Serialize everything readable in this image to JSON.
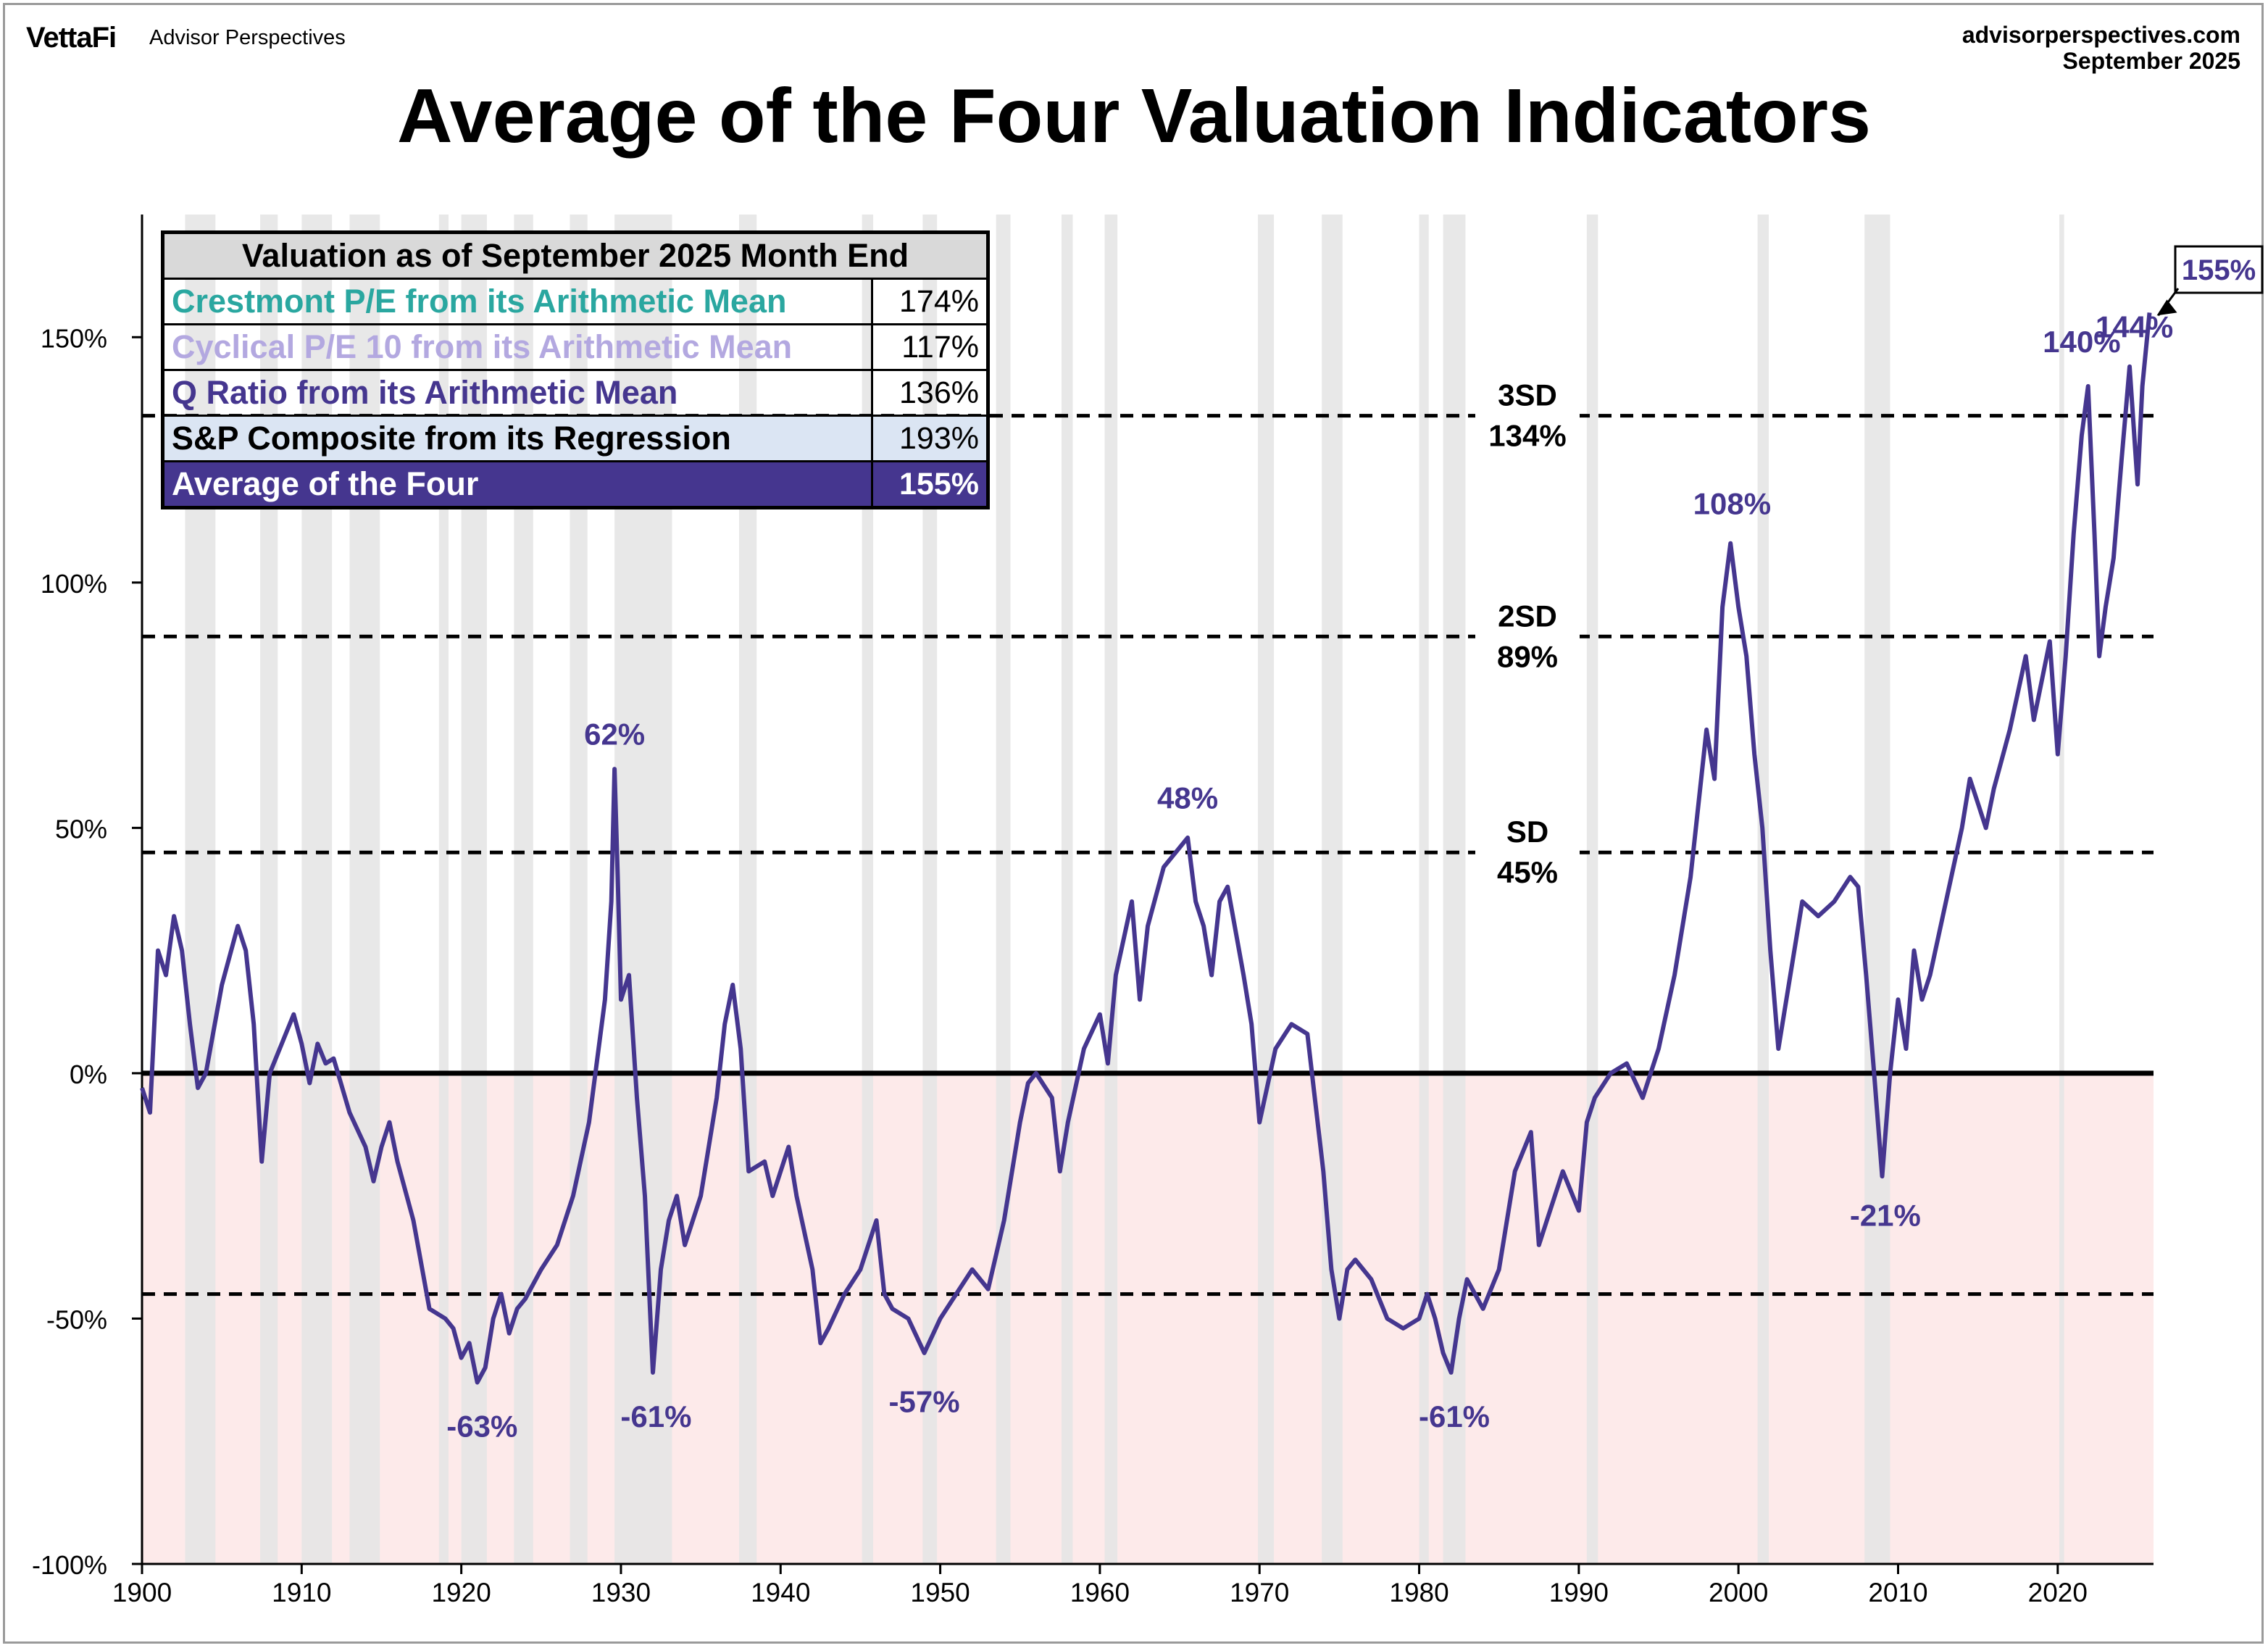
{
  "header": {
    "brand": "VettaFi",
    "brand_sub": "Advisor Perspectives",
    "site": "advisorperspectives.com",
    "date": "September 2025"
  },
  "title": "Average of the Four Valuation Indicators",
  "legend": {
    "header": "Valuation as of September 2025 Month End",
    "rows": [
      {
        "label": "Crestmont P/E from its Arithmetic Mean",
        "value": "174%",
        "color": "#2aa7a0"
      },
      {
        "label": "Cyclical P/E 10 from its Arithmetic Mean",
        "value": "117%",
        "color": "#b3a8e0"
      },
      {
        "label": "Q Ratio from its Arithmetic Mean",
        "value": "136%",
        "color": "#45368f"
      },
      {
        "label": "S&P Composite from its Regression",
        "value": "193%",
        "color": "#000000"
      },
      {
        "label": "Average of the Four",
        "value": "155%",
        "color": "#ffffff"
      }
    ]
  },
  "colors": {
    "line": "#45368f",
    "recession_band": "#e6e6e6",
    "negative_zone": "#fdeaea"
  },
  "chart_data": {
    "type": "line",
    "ylim": [
      -100,
      175
    ],
    "xlim": [
      1900,
      2026
    ],
    "yticks": [
      {
        "v": 150,
        "label": "150%"
      },
      {
        "v": 100,
        "label": "100%"
      },
      {
        "v": 50,
        "label": "50%"
      },
      {
        "v": 0,
        "label": "0%"
      },
      {
        "v": -50,
        "label": "-50%"
      },
      {
        "v": -100,
        "label": "-100%"
      }
    ],
    "xticks": [
      1900,
      1910,
      1920,
      1930,
      1940,
      1950,
      1960,
      1970,
      1980,
      1990,
      2000,
      2010,
      2020
    ],
    "ref_lines": [
      {
        "v": 134,
        "label_top": "3SD",
        "label_bottom": "134%"
      },
      {
        "v": 89,
        "label_top": "2SD",
        "label_bottom": "89%"
      },
      {
        "v": 45,
        "label_top": "SD",
        "label_bottom": "45%"
      },
      {
        "v": -45,
        "label_top": "",
        "label_bottom": ""
      }
    ],
    "recessions": [
      [
        1902.7,
        1904.6
      ],
      [
        1907.4,
        1908.5
      ],
      [
        1910.0,
        1911.9
      ],
      [
        1913.0,
        1914.9
      ],
      [
        1918.6,
        1919.2
      ],
      [
        1920.0,
        1921.6
      ],
      [
        1923.3,
        1924.5
      ],
      [
        1926.8,
        1927.9
      ],
      [
        1929.6,
        1933.2
      ],
      [
        1937.4,
        1938.5
      ],
      [
        1945.1,
        1945.8
      ],
      [
        1948.9,
        1949.8
      ],
      [
        1953.5,
        1954.4
      ],
      [
        1957.6,
        1958.3
      ],
      [
        1960.3,
        1961.1
      ],
      [
        1969.9,
        1970.9
      ],
      [
        1973.9,
        1975.2
      ],
      [
        1980.0,
        1980.6
      ],
      [
        1981.5,
        1982.9
      ],
      [
        1990.5,
        1991.2
      ],
      [
        2001.2,
        2001.9
      ],
      [
        2007.9,
        2009.5
      ],
      [
        2020.1,
        2020.4
      ]
    ],
    "series": [
      {
        "points": [
          [
            1900,
            -3
          ],
          [
            1900.5,
            -8
          ],
          [
            1901,
            25
          ],
          [
            1901.5,
            20
          ],
          [
            1902,
            32
          ],
          [
            1902.5,
            25
          ],
          [
            1903,
            10
          ],
          [
            1903.5,
            -3
          ],
          [
            1904,
            0
          ],
          [
            1905,
            18
          ],
          [
            1906,
            30
          ],
          [
            1906.5,
            25
          ],
          [
            1907,
            10
          ],
          [
            1907.5,
            -18
          ],
          [
            1908,
            0
          ],
          [
            1909,
            8
          ],
          [
            1909.5,
            12
          ],
          [
            1910,
            6
          ],
          [
            1910.5,
            -2
          ],
          [
            1911,
            6
          ],
          [
            1911.5,
            2
          ],
          [
            1912,
            3
          ],
          [
            1913,
            -8
          ],
          [
            1914,
            -15
          ],
          [
            1914.5,
            -22
          ],
          [
            1915,
            -15
          ],
          [
            1915.5,
            -10
          ],
          [
            1916,
            -18
          ],
          [
            1917,
            -30
          ],
          [
            1918,
            -48
          ],
          [
            1919,
            -50
          ],
          [
            1919.5,
            -52
          ],
          [
            1920,
            -58
          ],
          [
            1920.5,
            -55
          ],
          [
            1921,
            -63
          ],
          [
            1921.5,
            -60
          ],
          [
            1922,
            -50
          ],
          [
            1922.5,
            -45
          ],
          [
            1923,
            -53
          ],
          [
            1923.5,
            -48
          ],
          [
            1924,
            -46
          ],
          [
            1925,
            -40
          ],
          [
            1926,
            -35
          ],
          [
            1927,
            -25
          ],
          [
            1928,
            -10
          ],
          [
            1929,
            15
          ],
          [
            1929.4,
            35
          ],
          [
            1929.6,
            62
          ],
          [
            1929.8,
            40
          ],
          [
            1930,
            15
          ],
          [
            1930.5,
            20
          ],
          [
            1931,
            -5
          ],
          [
            1931.5,
            -25
          ],
          [
            1932,
            -61
          ],
          [
            1932.5,
            -40
          ],
          [
            1933,
            -30
          ],
          [
            1933.5,
            -25
          ],
          [
            1934,
            -35
          ],
          [
            1935,
            -25
          ],
          [
            1936,
            -5
          ],
          [
            1936.5,
            10
          ],
          [
            1937,
            18
          ],
          [
            1937.5,
            5
          ],
          [
            1938,
            -20
          ],
          [
            1939,
            -18
          ],
          [
            1939.5,
            -25
          ],
          [
            1940,
            -20
          ],
          [
            1940.5,
            -15
          ],
          [
            1941,
            -25
          ],
          [
            1942,
            -40
          ],
          [
            1942.5,
            -55
          ],
          [
            1943,
            -52
          ],
          [
            1944,
            -45
          ],
          [
            1945,
            -40
          ],
          [
            1945.5,
            -35
          ],
          [
            1946,
            -30
          ],
          [
            1946.5,
            -45
          ],
          [
            1947,
            -48
          ],
          [
            1948,
            -50
          ],
          [
            1949,
            -57
          ],
          [
            1950,
            -50
          ],
          [
            1951,
            -45
          ],
          [
            1952,
            -40
          ],
          [
            1953,
            -44
          ],
          [
            1954,
            -30
          ],
          [
            1955,
            -10
          ],
          [
            1955.5,
            -2
          ],
          [
            1956,
            0
          ],
          [
            1957,
            -5
          ],
          [
            1957.5,
            -20
          ],
          [
            1958,
            -10
          ],
          [
            1959,
            5
          ],
          [
            1960,
            12
          ],
          [
            1960.5,
            2
          ],
          [
            1961,
            20
          ],
          [
            1962,
            35
          ],
          [
            1962.5,
            15
          ],
          [
            1963,
            30
          ],
          [
            1964,
            42
          ],
          [
            1965,
            46
          ],
          [
            1965.5,
            48
          ],
          [
            1966,
            35
          ],
          [
            1966.5,
            30
          ],
          [
            1967,
            20
          ],
          [
            1967.5,
            35
          ],
          [
            1968,
            38
          ],
          [
            1969,
            20
          ],
          [
            1969.5,
            10
          ],
          [
            1970,
            -10
          ],
          [
            1971,
            5
          ],
          [
            1972,
            10
          ],
          [
            1973,
            8
          ],
          [
            1974,
            -20
          ],
          [
            1974.5,
            -40
          ],
          [
            1975,
            -50
          ],
          [
            1975.5,
            -40
          ],
          [
            1976,
            -38
          ],
          [
            1977,
            -42
          ],
          [
            1978,
            -50
          ],
          [
            1979,
            -52
          ],
          [
            1980,
            -50
          ],
          [
            1980.5,
            -45
          ],
          [
            1981,
            -50
          ],
          [
            1981.5,
            -57
          ],
          [
            1982,
            -61
          ],
          [
            1982.5,
            -50
          ],
          [
            1983,
            -42
          ],
          [
            1984,
            -48
          ],
          [
            1985,
            -40
          ],
          [
            1986,
            -20
          ],
          [
            1987,
            -12
          ],
          [
            1987.5,
            -35
          ],
          [
            1988,
            -30
          ],
          [
            1989,
            -20
          ],
          [
            1990,
            -28
          ],
          [
            1990.5,
            -10
          ],
          [
            1991,
            -5
          ],
          [
            1992,
            0
          ],
          [
            1993,
            2
          ],
          [
            1994,
            -5
          ],
          [
            1995,
            5
          ],
          [
            1996,
            20
          ],
          [
            1997,
            40
          ],
          [
            1998,
            70
          ],
          [
            1998.5,
            60
          ],
          [
            1999,
            95
          ],
          [
            1999.5,
            108
          ],
          [
            2000,
            95
          ],
          [
            2000.5,
            85
          ],
          [
            2001,
            65
          ],
          [
            2001.5,
            50
          ],
          [
            2002,
            25
          ],
          [
            2002.5,
            5
          ],
          [
            2003,
            15
          ],
          [
            2004,
            35
          ],
          [
            2005,
            32
          ],
          [
            2006,
            35
          ],
          [
            2007,
            40
          ],
          [
            2007.5,
            38
          ],
          [
            2008,
            20
          ],
          [
            2008.5,
            0
          ],
          [
            2009,
            -21
          ],
          [
            2009.5,
            0
          ],
          [
            2010,
            15
          ],
          [
            2010.5,
            5
          ],
          [
            2011,
            25
          ],
          [
            2011.5,
            15
          ],
          [
            2012,
            20
          ],
          [
            2013,
            35
          ],
          [
            2014,
            50
          ],
          [
            2014.5,
            60
          ],
          [
            2015,
            55
          ],
          [
            2015.5,
            50
          ],
          [
            2016,
            58
          ],
          [
            2017,
            70
          ],
          [
            2018,
            85
          ],
          [
            2018.5,
            72
          ],
          [
            2019,
            80
          ],
          [
            2019.5,
            88
          ],
          [
            2020,
            65
          ],
          [
            2020.5,
            85
          ],
          [
            2021,
            110
          ],
          [
            2021.5,
            130
          ],
          [
            2021.9,
            140
          ],
          [
            2022.3,
            110
          ],
          [
            2022.6,
            85
          ],
          [
            2023,
            95
          ],
          [
            2023.5,
            105
          ],
          [
            2024,
            125
          ],
          [
            2024.5,
            144
          ],
          [
            2025,
            120
          ],
          [
            2025.3,
            140
          ],
          [
            2025.75,
            155
          ]
        ]
      }
    ],
    "annotations": [
      {
        "x": 1902.5,
        "y": 156,
        "label": "62%",
        "lx": 1929.6,
        "ly": 69
      },
      {
        "label": "-63%",
        "lx": 1921.3,
        "ly": -72
      },
      {
        "label": "-61%",
        "lx": 1932.2,
        "ly": -70
      },
      {
        "label": "-57%",
        "lx": 1949.0,
        "ly": -67
      },
      {
        "label": "48%",
        "lx": 1965.5,
        "ly": 56
      },
      {
        "label": "-61%",
        "lx": 1982.2,
        "ly": -70
      },
      {
        "label": "108%",
        "lx": 1999.6,
        "ly": 116
      },
      {
        "label": "-21%",
        "lx": 2009.2,
        "ly": -29
      },
      {
        "label": "140%",
        "lx": 2021.5,
        "ly": 149
      },
      {
        "label": "144%",
        "lx": 2024.8,
        "ly": 152
      }
    ],
    "latest_callout": "155%"
  }
}
